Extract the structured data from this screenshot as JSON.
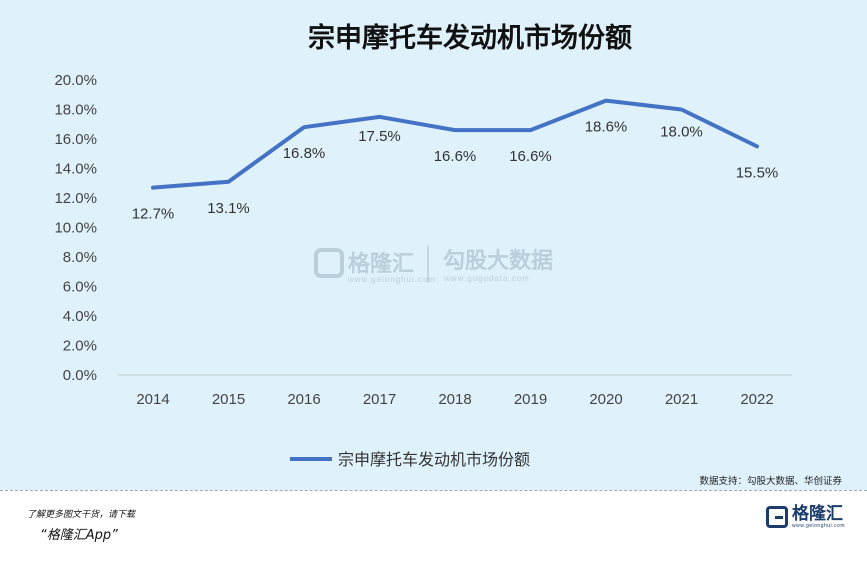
{
  "chart_data": {
    "type": "line",
    "title": "宗申摩托车发动机市场份额",
    "categories": [
      "2014",
      "2015",
      "2016",
      "2017",
      "2018",
      "2019",
      "2020",
      "2021",
      "2022"
    ],
    "series": [
      {
        "name": "宗申摩托车发动机市场份额",
        "values": [
          12.7,
          13.1,
          16.8,
          17.5,
          16.6,
          16.6,
          18.6,
          18.0,
          15.5
        ],
        "data_labels": [
          "12.7%",
          "13.1%",
          "16.8%",
          "17.5%",
          "16.6%",
          "16.6%",
          "18.6%",
          "18.0%",
          "15.5%"
        ],
        "color": "#4472c4"
      }
    ],
    "y_ticks": [
      "0.0%",
      "2.0%",
      "4.0%",
      "6.0%",
      "8.0%",
      "10.0%",
      "12.0%",
      "14.0%",
      "16.0%",
      "18.0%",
      "20.0%"
    ],
    "ylim": [
      0,
      20
    ],
    "grid": false,
    "legend_position": "bottom"
  },
  "source": "数据支持：勾股大数据、华创证券",
  "watermark": {
    "brand_cn": "格隆汇",
    "brand_url": "www.gelonghui.com",
    "data_cn": "勾股大数据",
    "data_url": "www.gogudata.com"
  },
  "footer": {
    "line1": "了解更多图文干货，请下载",
    "line2": "“格隆汇App”",
    "logo_cn": "格隆汇",
    "logo_en": "www.gelonghui.com"
  }
}
